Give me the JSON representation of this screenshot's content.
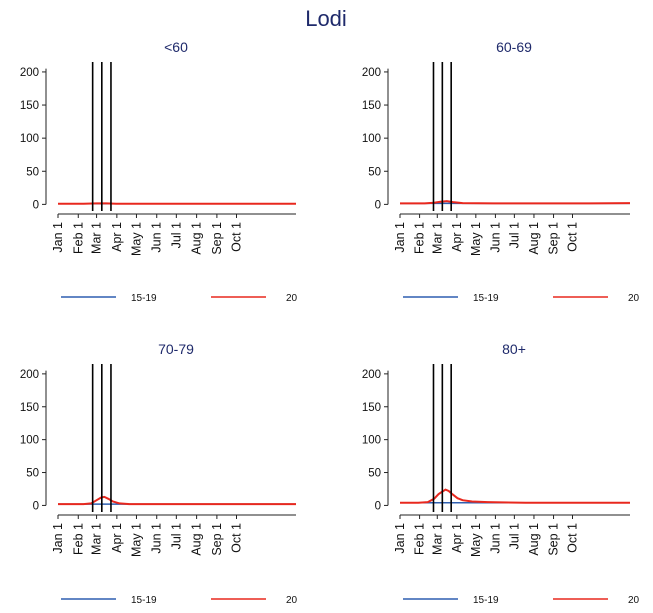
{
  "page": {
    "title": "Lodi"
  },
  "colors": {
    "series_1519": "#2f5fb0",
    "series_20": "#e8281e",
    "event_lines": "#000000",
    "title": "#1f2a6b"
  },
  "chart_data": [
    {
      "type": "line",
      "title": "<60",
      "ylim": [
        -10,
        215
      ],
      "yticks": [
        0,
        50,
        100,
        150,
        200
      ],
      "xticks": [
        "Jan 1",
        "Feb 1",
        "Mar 1",
        "Apr 1",
        "May 1",
        "Jun 1",
        "Jul 1",
        "Aug 1",
        "Sep 1",
        "Oct 1"
      ],
      "x_range_days": [
        1,
        365
      ],
      "event_lines_days": [
        54,
        68,
        82
      ],
      "grid": false,
      "legend": "bottom",
      "series": [
        {
          "name": "15-19",
          "color": "#2f5fb0",
          "points": [
            [
              1,
              1
            ],
            [
              365,
              1
            ]
          ]
        },
        {
          "name": "20",
          "color": "#e8281e",
          "points": [
            [
              1,
              1
            ],
            [
              40,
              1
            ],
            [
              60,
              1.5
            ],
            [
              75,
              1.5
            ],
            [
              90,
              1
            ],
            [
              150,
              1
            ],
            [
              250,
              1
            ],
            [
              365,
              1
            ]
          ]
        }
      ]
    },
    {
      "type": "line",
      "title": "60-69",
      "ylim": [
        -10,
        215
      ],
      "yticks": [
        0,
        50,
        100,
        150,
        200
      ],
      "xticks": [
        "Jan 1",
        "Feb 1",
        "Mar 1",
        "Apr 1",
        "May 1",
        "Jun 1",
        "Jul 1",
        "Aug 1",
        "Sep 1",
        "Oct 1"
      ],
      "x_range_days": [
        1,
        365
      ],
      "event_lines_days": [
        54,
        68,
        82
      ],
      "grid": false,
      "legend": "bottom",
      "series": [
        {
          "name": "15-19",
          "color": "#2f5fb0",
          "points": [
            [
              1,
              1.5
            ],
            [
              365,
              1.5
            ]
          ]
        },
        {
          "name": "20",
          "color": "#e8281e",
          "points": [
            [
              1,
              1.5
            ],
            [
              40,
              1.5
            ],
            [
              55,
              2.5
            ],
            [
              65,
              4
            ],
            [
              75,
              5
            ],
            [
              85,
              3.5
            ],
            [
              100,
              2
            ],
            [
              150,
              1.5
            ],
            [
              250,
              1.5
            ],
            [
              300,
              1.5
            ],
            [
              365,
              2
            ]
          ]
        }
      ]
    },
    {
      "type": "line",
      "title": "70-79",
      "ylim": [
        -10,
        215
      ],
      "yticks": [
        0,
        50,
        100,
        150,
        200
      ],
      "xticks": [
        "Jan 1",
        "Feb 1",
        "Mar 1",
        "Apr 1",
        "May 1",
        "Jun 1",
        "Jul 1",
        "Aug 1",
        "Sep 1",
        "Oct 1"
      ],
      "x_range_days": [
        1,
        365
      ],
      "event_lines_days": [
        54,
        68,
        82
      ],
      "grid": false,
      "legend": "bottom",
      "series": [
        {
          "name": "15-19",
          "color": "#2f5fb0",
          "points": [
            [
              1,
              2
            ],
            [
              365,
              2
            ]
          ]
        },
        {
          "name": "20",
          "color": "#e8281e",
          "points": [
            [
              1,
              2
            ],
            [
              40,
              2
            ],
            [
              52,
              3
            ],
            [
              60,
              8
            ],
            [
              67,
              12
            ],
            [
              72,
              13
            ],
            [
              78,
              10
            ],
            [
              85,
              6
            ],
            [
              95,
              3
            ],
            [
              110,
              2
            ],
            [
              150,
              2
            ],
            [
              250,
              2
            ],
            [
              365,
              2
            ]
          ]
        }
      ]
    },
    {
      "type": "line",
      "title": "80+",
      "ylim": [
        -10,
        215
      ],
      "yticks": [
        0,
        50,
        100,
        150,
        200
      ],
      "xticks": [
        "Jan 1",
        "Feb 1",
        "Mar 1",
        "Apr 1",
        "May 1",
        "Jun 1",
        "Jul 1",
        "Aug 1",
        "Sep 1",
        "Oct 1"
      ],
      "x_range_days": [
        1,
        365
      ],
      "event_lines_days": [
        54,
        68,
        82
      ],
      "grid": false,
      "legend": "bottom",
      "series": [
        {
          "name": "15-19",
          "color": "#2f5fb0",
          "points": [
            [
              1,
              4
            ],
            [
              365,
              4
            ]
          ]
        },
        {
          "name": "20",
          "color": "#e8281e",
          "points": [
            [
              1,
              4
            ],
            [
              30,
              4
            ],
            [
              45,
              5
            ],
            [
              55,
              10
            ],
            [
              62,
              17
            ],
            [
              68,
              21
            ],
            [
              73,
              24
            ],
            [
              78,
              22
            ],
            [
              84,
              17
            ],
            [
              92,
              11
            ],
            [
              100,
              8
            ],
            [
              115,
              6
            ],
            [
              140,
              5
            ],
            [
              200,
              4
            ],
            [
              300,
              4
            ],
            [
              365,
              4
            ]
          ]
        }
      ]
    }
  ]
}
